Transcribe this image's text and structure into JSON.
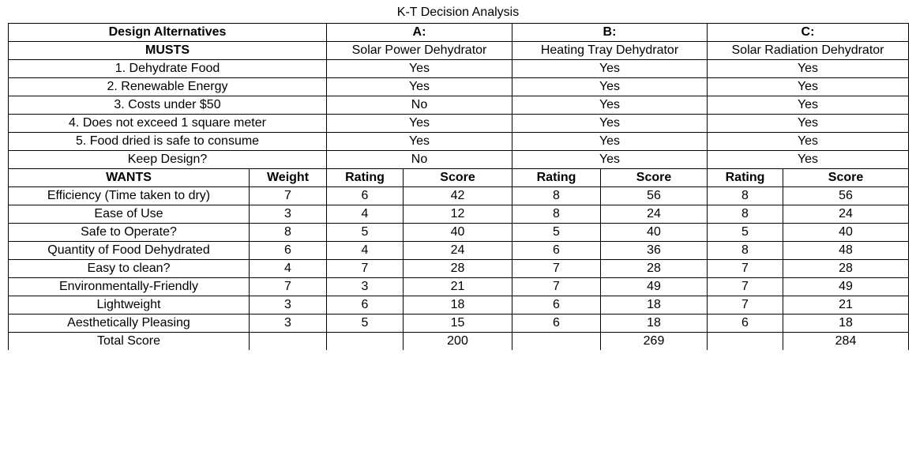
{
  "title": "K-T Decision Analysis",
  "header": {
    "design_alternatives": "Design Alternatives",
    "a": "A:",
    "b": "B:",
    "c": "C:",
    "musts": "MUSTS",
    "a_name": "Solar Power Dehydrator",
    "b_name": "Heating Tray Dehydrator",
    "c_name": "Solar Radiation Dehydrator"
  },
  "musts": [
    {
      "label": "1. Dehydrate Food",
      "a": "Yes",
      "b": "Yes",
      "c": "Yes"
    },
    {
      "label": "2. Renewable Energy",
      "a": "Yes",
      "b": "Yes",
      "c": "Yes"
    },
    {
      "label": "3. Costs under $50",
      "a": "No",
      "b": "Yes",
      "c": "Yes"
    },
    {
      "label": "4. Does not exceed 1 square meter",
      "a": "Yes",
      "b": "Yes",
      "c": "Yes"
    },
    {
      "label": "5. Food dried is safe to consume",
      "a": "Yes",
      "b": "Yes",
      "c": "Yes"
    },
    {
      "label": "Keep Design?",
      "a": "No",
      "b": "Yes",
      "c": "Yes"
    }
  ],
  "wants_header": {
    "wants": "WANTS",
    "weight": "Weight",
    "rating": "Rating",
    "score": "Score"
  },
  "wants": [
    {
      "label": "Efficiency (Time taken to dry)",
      "weight": "7",
      "a_rating": "6",
      "a_score": "42",
      "b_rating": "8",
      "b_score": "56",
      "c_rating": "8",
      "c_score": "56"
    },
    {
      "label": "Ease of Use",
      "weight": "3",
      "a_rating": "4",
      "a_score": "12",
      "b_rating": "8",
      "b_score": "24",
      "c_rating": "8",
      "c_score": "24"
    },
    {
      "label": "Safe to Operate?",
      "weight": "8",
      "a_rating": "5",
      "a_score": "40",
      "b_rating": "5",
      "b_score": "40",
      "c_rating": "5",
      "c_score": "40"
    },
    {
      "label": "Quantity of Food Dehydrated",
      "weight": "6",
      "a_rating": "4",
      "a_score": "24",
      "b_rating": "6",
      "b_score": "36",
      "c_rating": "8",
      "c_score": "48"
    },
    {
      "label": "Easy to clean?",
      "weight": "4",
      "a_rating": "7",
      "a_score": "28",
      "b_rating": "7",
      "b_score": "28",
      "c_rating": "7",
      "c_score": "28"
    },
    {
      "label": "Environmentally-Friendly",
      "weight": "7",
      "a_rating": "3",
      "a_score": "21",
      "b_rating": "7",
      "b_score": "49",
      "c_rating": "7",
      "c_score": "49"
    },
    {
      "label": "Lightweight",
      "weight": "3",
      "a_rating": "6",
      "a_score": "18",
      "b_rating": "6",
      "b_score": "18",
      "c_rating": "7",
      "c_score": "21"
    },
    {
      "label": "Aesthetically Pleasing",
      "weight": "3",
      "a_rating": "5",
      "a_score": "15",
      "b_rating": "6",
      "b_score": "18",
      "c_rating": "6",
      "c_score": "18"
    }
  ],
  "total": {
    "label": "Total Score",
    "a": "200",
    "b": "269",
    "c": "284"
  }
}
